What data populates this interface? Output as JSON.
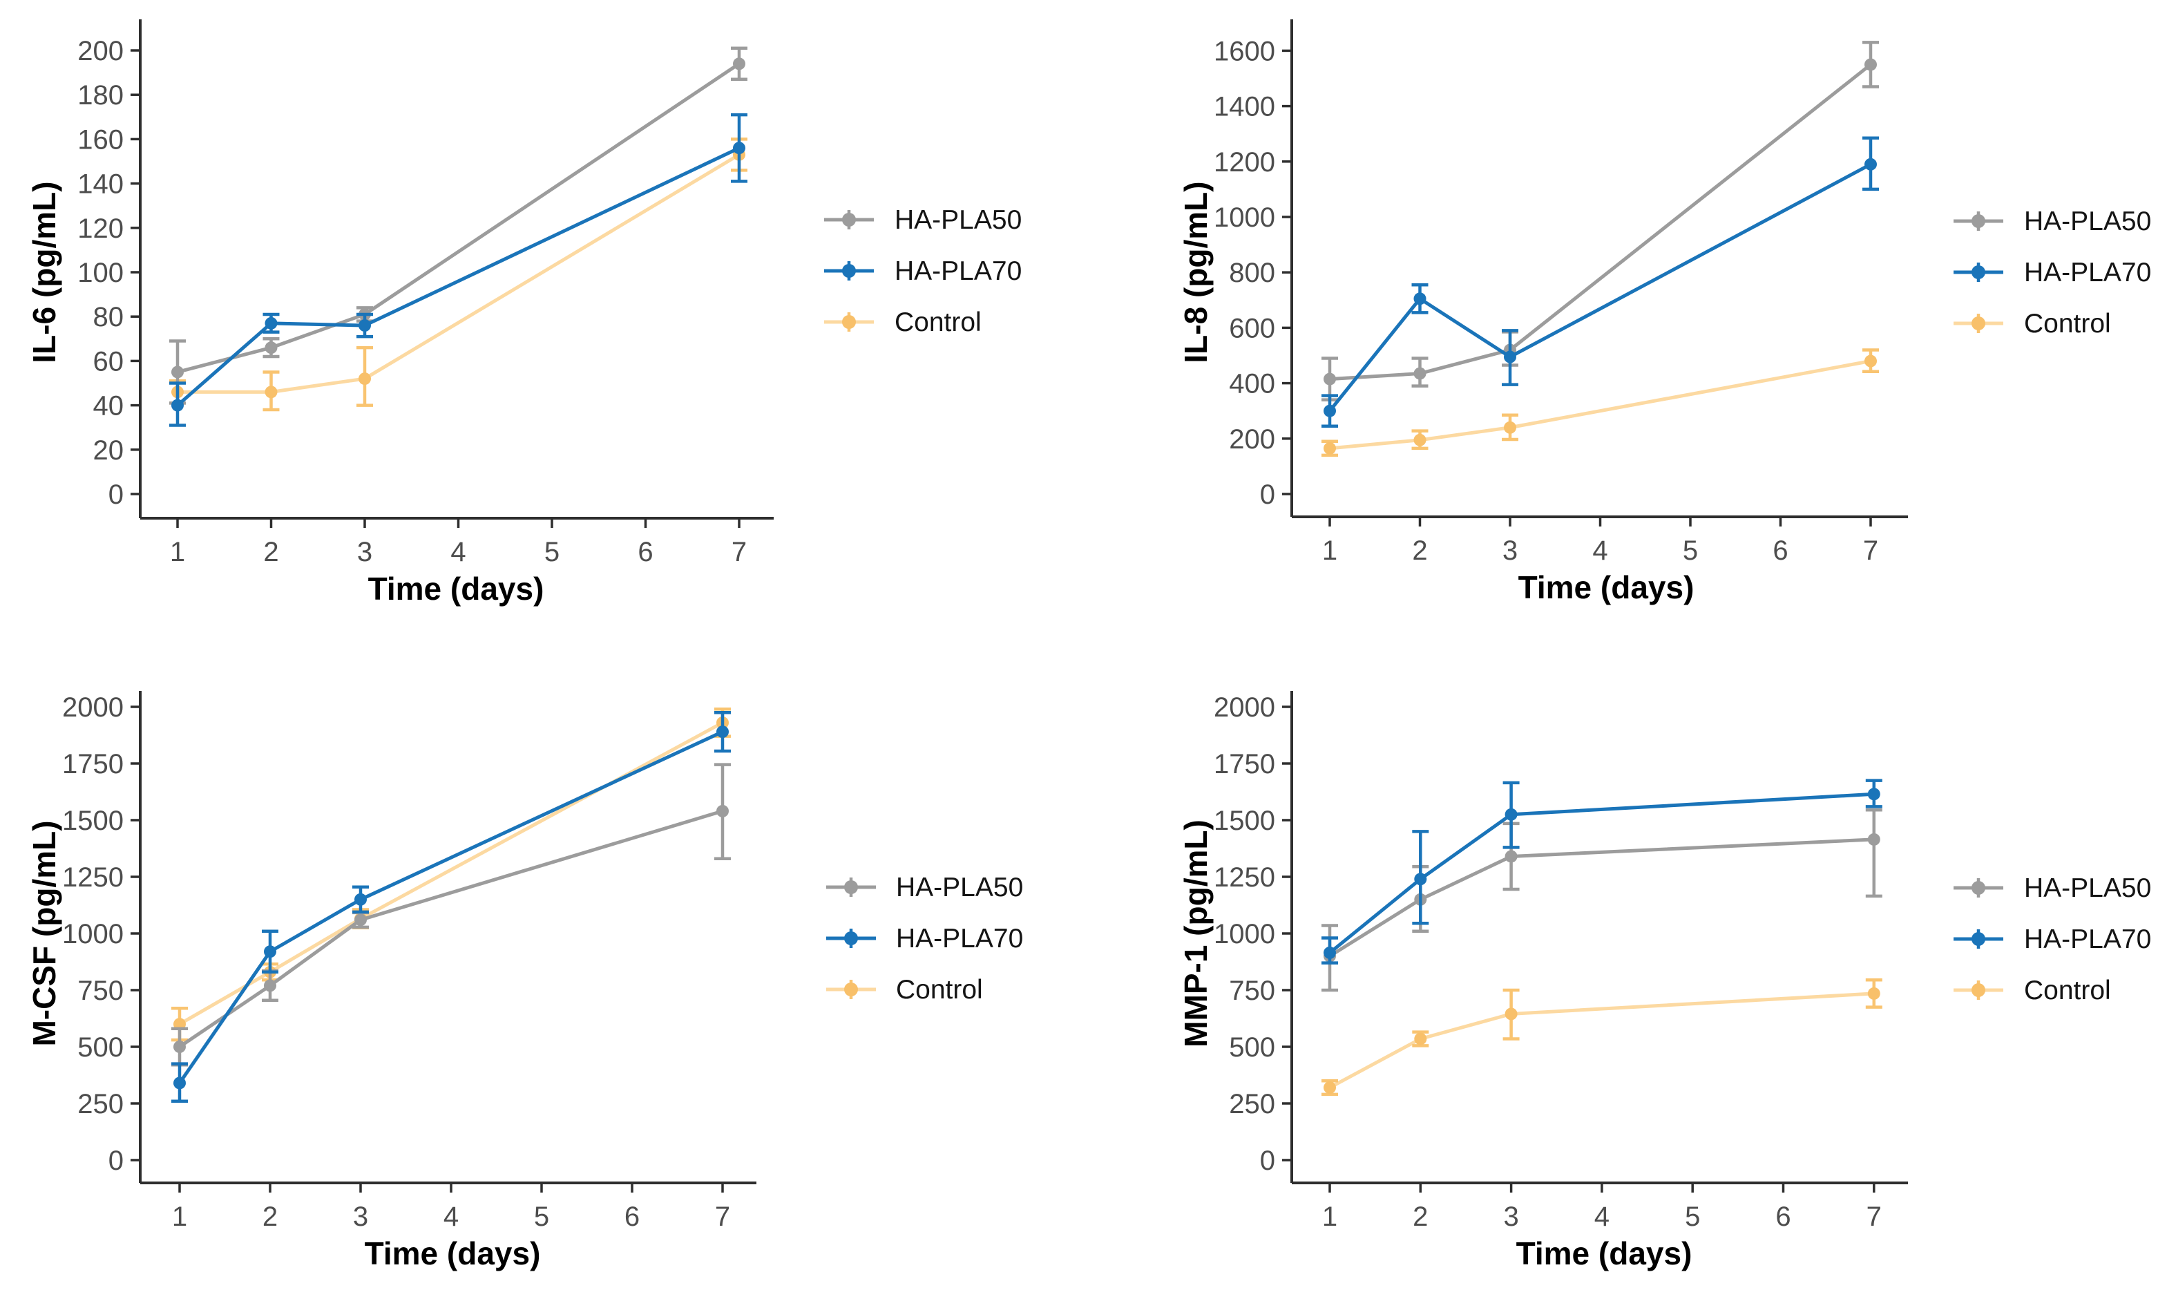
{
  "figure": {
    "background": "#ffffff",
    "axis_color": "#2e2e2e",
    "tick_label_color": "#4d4d4d",
    "axis_title_color": "#000000",
    "legend_text_color": "#141414",
    "series_colors": {
      "HA-PLA50": "#9c9c9c",
      "HA-PLA70": "#1a74b9",
      "Control": "#fcd9a1"
    }
  },
  "chart_data": [
    {
      "id": "il6",
      "type": "line",
      "title": "",
      "xlabel": "Time (days)",
      "ylabel": "IL-6 (pg/mL)",
      "x": [
        1,
        2,
        3,
        7
      ],
      "x_ticks": [
        1,
        2,
        3,
        4,
        5,
        6,
        7
      ],
      "y_ticks": [
        0,
        20,
        40,
        60,
        80,
        100,
        120,
        140,
        160,
        180,
        200
      ],
      "ylim": [
        0,
        200
      ],
      "grid": false,
      "legend_position": "right",
      "series": [
        {
          "name": "HA-PLA50",
          "color": "#9c9c9c",
          "marker_color": "#9c9c9c",
          "err_color": "#9c9c9c",
          "values": [
            55,
            66,
            81,
            194
          ],
          "err_low": [
            41,
            62,
            78,
            187
          ],
          "err_high": [
            69,
            70,
            84,
            201
          ]
        },
        {
          "name": "HA-PLA70",
          "color": "#1a74b9",
          "marker_color": "#1a74b9",
          "err_color": "#1a74b9",
          "values": [
            40,
            77,
            76,
            156
          ],
          "err_low": [
            31,
            73,
            71,
            141
          ],
          "err_high": [
            50,
            81,
            81,
            171
          ]
        },
        {
          "name": "Control",
          "color": "#fcd9a1",
          "marker_color": "#f8c06a",
          "err_color": "#f9c471",
          "values": [
            46,
            46,
            52,
            153
          ],
          "err_low": [
            41,
            38,
            40,
            146
          ],
          "err_high": [
            51,
            55,
            66,
            160
          ]
        }
      ]
    },
    {
      "id": "il8",
      "type": "line",
      "title": "",
      "xlabel": "Time (days)",
      "ylabel": "IL-8 (pg/mL)",
      "x": [
        1,
        2,
        3,
        7
      ],
      "x_ticks": [
        1,
        2,
        3,
        4,
        5,
        6,
        7
      ],
      "y_ticks": [
        0,
        200,
        400,
        600,
        800,
        1000,
        1200,
        1400,
        1600
      ],
      "ylim": [
        0,
        1600
      ],
      "grid": false,
      "legend_position": "right",
      "series": [
        {
          "name": "HA-PLA50",
          "color": "#9c9c9c",
          "marker_color": "#9c9c9c",
          "err_color": "#9c9c9c",
          "values": [
            415,
            435,
            520,
            1550
          ],
          "err_low": [
            340,
            390,
            465,
            1470
          ],
          "err_high": [
            490,
            490,
            585,
            1630
          ]
        },
        {
          "name": "HA-PLA70",
          "color": "#1a74b9",
          "marker_color": "#1a74b9",
          "err_color": "#1a74b9",
          "values": [
            300,
            705,
            495,
            1190
          ],
          "err_low": [
            245,
            655,
            395,
            1100
          ],
          "err_high": [
            355,
            755,
            590,
            1285
          ]
        },
        {
          "name": "Control",
          "color": "#fcd9a1",
          "marker_color": "#f8c06a",
          "err_color": "#f9c471",
          "values": [
            165,
            195,
            240,
            480
          ],
          "err_low": [
            140,
            165,
            197,
            442
          ],
          "err_high": [
            190,
            228,
            285,
            520
          ]
        }
      ]
    },
    {
      "id": "mcsf",
      "type": "line",
      "title": "",
      "xlabel": "Time (days)",
      "ylabel": "M-CSF (pg/mL)",
      "x": [
        1,
        2,
        3,
        7
      ],
      "x_ticks": [
        1,
        2,
        3,
        4,
        5,
        6,
        7
      ],
      "y_ticks": [
        0,
        250,
        500,
        750,
        1000,
        1250,
        1500,
        1750,
        2000
      ],
      "ylim": [
        0,
        2000
      ],
      "grid": false,
      "legend_position": "right",
      "series": [
        {
          "name": "HA-PLA50",
          "color": "#9c9c9c",
          "marker_color": "#9c9c9c",
          "err_color": "#9c9c9c",
          "values": [
            500,
            770,
            1060,
            1540
          ],
          "err_low": [
            420,
            705,
            1028,
            1330
          ],
          "err_high": [
            580,
            835,
            1092,
            1745
          ]
        },
        {
          "name": "HA-PLA70",
          "color": "#1a74b9",
          "marker_color": "#1a74b9",
          "err_color": "#1a74b9",
          "values": [
            340,
            920,
            1150,
            1890
          ],
          "err_low": [
            260,
            830,
            1095,
            1805
          ],
          "err_high": [
            425,
            1010,
            1205,
            1975
          ]
        },
        {
          "name": "Control",
          "color": "#fcd9a1",
          "marker_color": "#f8c06a",
          "err_color": "#f9c471",
          "values": [
            600,
            830,
            1065,
            1930
          ],
          "err_low": [
            530,
            795,
            1025,
            1870
          ],
          "err_high": [
            670,
            865,
            1105,
            1990
          ]
        }
      ]
    },
    {
      "id": "mmp1",
      "type": "line",
      "title": "",
      "xlabel": "Time (days)",
      "ylabel": "MMP-1 (pg/mL)",
      "x": [
        1,
        2,
        3,
        7
      ],
      "x_ticks": [
        1,
        2,
        3,
        4,
        5,
        6,
        7
      ],
      "y_ticks": [
        0,
        250,
        500,
        750,
        1000,
        1250,
        1500,
        1750,
        2000
      ],
      "ylim": [
        0,
        2000
      ],
      "grid": false,
      "legend_position": "right",
      "series": [
        {
          "name": "HA-PLA50",
          "color": "#9c9c9c",
          "marker_color": "#9c9c9c",
          "err_color": "#9c9c9c",
          "values": [
            900,
            1150,
            1340,
            1415
          ],
          "err_low": [
            750,
            1010,
            1195,
            1165
          ],
          "err_high": [
            1035,
            1295,
            1485,
            1545
          ]
        },
        {
          "name": "HA-PLA70",
          "color": "#1a74b9",
          "marker_color": "#1a74b9",
          "err_color": "#1a74b9",
          "values": [
            915,
            1240,
            1525,
            1615
          ],
          "err_low": [
            870,
            1045,
            1380,
            1560
          ],
          "err_high": [
            980,
            1450,
            1665,
            1675
          ]
        },
        {
          "name": "Control",
          "color": "#fcd9a1",
          "marker_color": "#f8c06a",
          "err_color": "#f9c471",
          "values": [
            320,
            535,
            645,
            735
          ],
          "err_low": [
            290,
            505,
            535,
            675
          ],
          "err_high": [
            350,
            565,
            750,
            795
          ]
        }
      ]
    }
  ]
}
